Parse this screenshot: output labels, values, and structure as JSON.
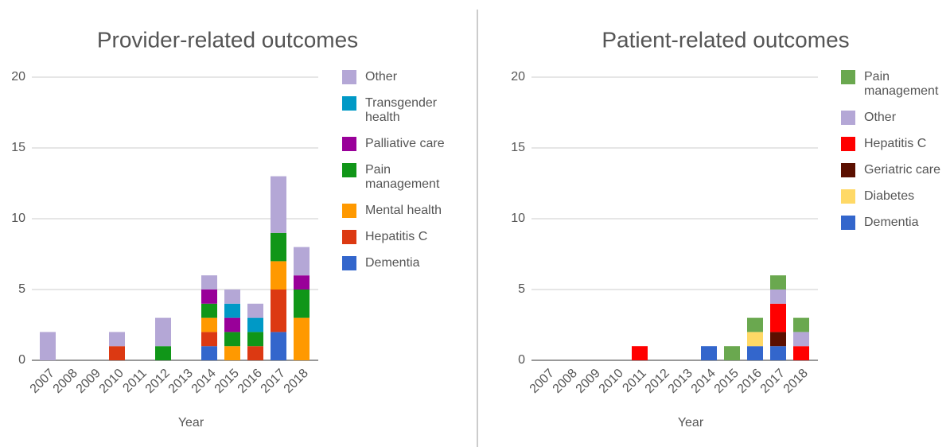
{
  "chart_data": [
    {
      "type": "bar",
      "stacked": true,
      "title": "Provider-related outcomes",
      "x_label": "Year",
      "categories": [
        "2007",
        "2008",
        "2009",
        "2010",
        "2011",
        "2012",
        "2013",
        "2014",
        "2015",
        "2016",
        "2017",
        "2018"
      ],
      "ylim": [
        0,
        20
      ],
      "yticks": [
        0,
        5,
        10,
        15,
        20
      ],
      "grid": true,
      "series": [
        {
          "name": "Dementia",
          "color": "#3366cc",
          "values": [
            0,
            0,
            0,
            0,
            0,
            0,
            0,
            1,
            0,
            0,
            2,
            0
          ]
        },
        {
          "name": "Hepatitis C",
          "color": "#dc3912",
          "values": [
            0,
            0,
            0,
            1,
            0,
            0,
            0,
            1,
            0,
            1,
            3,
            0
          ]
        },
        {
          "name": "Mental health",
          "color": "#ff9900",
          "values": [
            0,
            0,
            0,
            0,
            0,
            0,
            0,
            1,
            1,
            0,
            2,
            3
          ]
        },
        {
          "name": "Pain management",
          "color": "#109618",
          "values": [
            0,
            0,
            0,
            0,
            0,
            1,
            0,
            1,
            1,
            1,
            2,
            2
          ]
        },
        {
          "name": "Palliative care",
          "color": "#990099",
          "values": [
            0,
            0,
            0,
            0,
            0,
            0,
            0,
            1,
            1,
            0,
            0,
            1
          ]
        },
        {
          "name": "Transgender health",
          "color": "#0099c6",
          "values": [
            0,
            0,
            0,
            0,
            0,
            0,
            0,
            0,
            1,
            1,
            0,
            0
          ]
        },
        {
          "name": "Other",
          "color": "#b4a7d6",
          "values": [
            2,
            0,
            0,
            1,
            0,
            2,
            0,
            1,
            1,
            1,
            4,
            2
          ]
        }
      ]
    },
    {
      "type": "bar",
      "stacked": true,
      "title": "Patient-related outcomes",
      "x_label": "Year",
      "categories": [
        "2007",
        "2008",
        "2009",
        "2010",
        "2011",
        "2012",
        "2013",
        "2014",
        "2015",
        "2016",
        "2017",
        "2018"
      ],
      "ylim": [
        0,
        20
      ],
      "yticks": [
        0,
        5,
        10,
        15,
        20
      ],
      "grid": true,
      "series": [
        {
          "name": "Dementia",
          "color": "#3366cc",
          "values": [
            0,
            0,
            0,
            0,
            0,
            0,
            0,
            1,
            0,
            1,
            1,
            0
          ]
        },
        {
          "name": "Diabetes",
          "color": "#ffd966",
          "values": [
            0,
            0,
            0,
            0,
            0,
            0,
            0,
            0,
            0,
            1,
            0,
            0
          ]
        },
        {
          "name": "Geriatric care",
          "color": "#5b0f00",
          "values": [
            0,
            0,
            0,
            0,
            0,
            0,
            0,
            0,
            0,
            0,
            1,
            0
          ]
        },
        {
          "name": "Hepatitis C",
          "color": "#ff0000",
          "values": [
            0,
            0,
            0,
            0,
            1,
            0,
            0,
            0,
            0,
            0,
            2,
            1
          ]
        },
        {
          "name": "Other",
          "color": "#b4a7d6",
          "values": [
            0,
            0,
            0,
            0,
            0,
            0,
            0,
            0,
            0,
            0,
            1,
            1
          ]
        },
        {
          "name": "Pain management",
          "color": "#6aa84f",
          "values": [
            0,
            0,
            0,
            0,
            0,
            0,
            0,
            0,
            1,
            1,
            1,
            1
          ]
        }
      ]
    }
  ]
}
